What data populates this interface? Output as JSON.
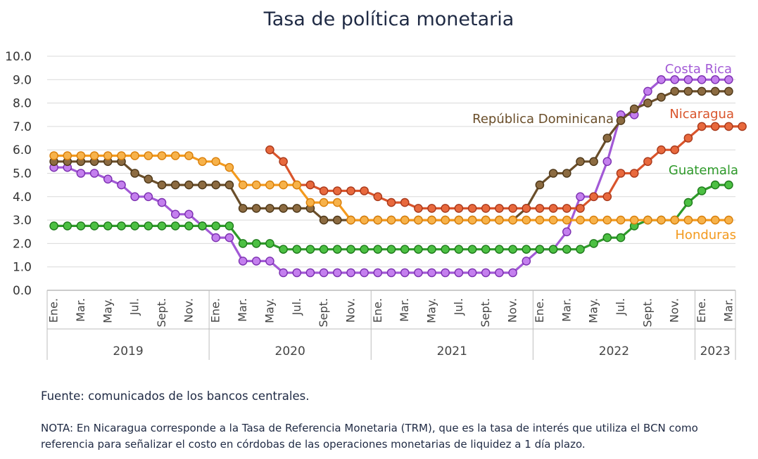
{
  "title": "Tasa de política monetaria",
  "source": "Fuente: comunicados de los bancos centrales.",
  "note": "NOTA: En Nicaragua corresponde a la Tasa de Referencia Monetaria (TRM), que es la tasa de interés que utiliza el BCN como referencia para señalizar el costo en córdobas de las operaciones monetarias de liquidez a 1 día plazo.",
  "chart_data": {
    "type": "line",
    "title": "Tasa de política monetaria",
    "xlabel": "",
    "ylabel": "",
    "ylim": [
      0,
      10
    ],
    "yticks": [
      "0.0",
      "1.0",
      "2.0",
      "3.0",
      "4.0",
      "5.0",
      "6.0",
      "7.0",
      "8.0",
      "9.0",
      "10.0"
    ],
    "grid": true,
    "tick_labels": [
      "Ene.",
      "Mar.",
      "May.",
      "Jul.",
      "Sept.",
      "Nov.",
      "Ene.",
      "Mar.",
      "May.",
      "Jul.",
      "Sept.",
      "Nov.",
      "Ene.",
      "Mar.",
      "May.",
      "Jul.",
      "Sept.",
      "Nov.",
      "Ene.",
      "Mar.",
      "May.",
      "Jul.",
      "Sept.",
      "Nov.",
      "Ene.",
      "Mar."
    ],
    "years": [
      {
        "label": "2019",
        "months": 12
      },
      {
        "label": "2020",
        "months": 12
      },
      {
        "label": "2021",
        "months": 12
      },
      {
        "label": "2022",
        "months": 12
      },
      {
        "label": "2023",
        "months": 3
      }
    ],
    "series": [
      {
        "name": "Costa Rica",
        "color": "#a259d6",
        "line_color": "#a259d6",
        "marker_fill": "#c47fee",
        "marker_stroke": "#7b2fb0",
        "start": 0,
        "values": [
          5.25,
          5.25,
          5.0,
          5.0,
          4.75,
          4.5,
          4.0,
          4.0,
          3.75,
          3.25,
          3.25,
          2.75,
          2.25,
          2.25,
          1.25,
          1.25,
          1.25,
          0.75,
          0.75,
          0.75,
          0.75,
          0.75,
          0.75,
          0.75,
          0.75,
          0.75,
          0.75,
          0.75,
          0.75,
          0.75,
          0.75,
          0.75,
          0.75,
          0.75,
          0.75,
          1.25,
          1.75,
          1.75,
          2.5,
          4.0,
          4.0,
          5.5,
          7.5,
          7.5,
          8.5,
          9.0,
          9.0,
          9.0,
          9.0,
          9.0,
          9.0
        ]
      },
      {
        "name": "República Dominicana",
        "color": "#6a4e2a",
        "line_color": "#6a4e2a",
        "marker_fill": "#8c6b41",
        "marker_stroke": "#4d3718",
        "start": 0,
        "values": [
          5.5,
          5.5,
          5.5,
          5.5,
          5.5,
          5.5,
          5.0,
          4.75,
          4.5,
          4.5,
          4.5,
          4.5,
          4.5,
          4.5,
          3.5,
          3.5,
          3.5,
          3.5,
          3.5,
          3.5,
          3.0,
          3.0,
          3.0,
          3.0,
          3.0,
          3.0,
          3.0,
          3.0,
          3.0,
          3.0,
          3.0,
          3.0,
          3.0,
          3.0,
          3.0,
          3.5,
          4.5,
          5.0,
          5.0,
          5.5,
          5.5,
          6.5,
          7.25,
          7.75,
          8.0,
          8.25,
          8.5,
          8.5,
          8.5,
          8.5,
          8.5
        ]
      },
      {
        "name": "Nicaragua",
        "color": "#d9542b",
        "line_color": "#d9542b",
        "marker_fill": "#e8693d",
        "marker_stroke": "#a8381a",
        "start": 16,
        "values": [
          6.0,
          5.5,
          4.5,
          4.5,
          4.25,
          4.25,
          4.25,
          4.25,
          4.0,
          3.75,
          3.75,
          3.5,
          3.5,
          3.5,
          3.5,
          3.5,
          3.5,
          3.5,
          3.5,
          3.5,
          3.5,
          3.5,
          3.5,
          3.5,
          4.0,
          4.0,
          5.0,
          5.0,
          5.5,
          6.0,
          6.0,
          6.5,
          7.0,
          7.0,
          7.0,
          7.0
        ]
      },
      {
        "name": "Guatemala",
        "color": "#2e9a2a",
        "line_color": "#2e9a2a",
        "marker_fill": "#4cc043",
        "marker_stroke": "#1e7a1b",
        "start": 0,
        "values": [
          2.75,
          2.75,
          2.75,
          2.75,
          2.75,
          2.75,
          2.75,
          2.75,
          2.75,
          2.75,
          2.75,
          2.75,
          2.75,
          2.75,
          2.0,
          2.0,
          2.0,
          1.75,
          1.75,
          1.75,
          1.75,
          1.75,
          1.75,
          1.75,
          1.75,
          1.75,
          1.75,
          1.75,
          1.75,
          1.75,
          1.75,
          1.75,
          1.75,
          1.75,
          1.75,
          1.75,
          1.75,
          1.75,
          1.75,
          1.75,
          2.0,
          2.25,
          2.25,
          2.75,
          3.0,
          3.0,
          3.0,
          3.75,
          4.25,
          4.5,
          4.5
        ]
      },
      {
        "name": "Honduras",
        "color": "#f39a1e",
        "line_color": "#f39a1e",
        "marker_fill": "#f7b24a",
        "marker_stroke": "#d97f0a",
        "start": 0,
        "values": [
          5.75,
          5.75,
          5.75,
          5.75,
          5.75,
          5.75,
          5.75,
          5.75,
          5.75,
          5.75,
          5.75,
          5.5,
          5.5,
          5.25,
          4.5,
          4.5,
          4.5,
          4.5,
          4.5,
          3.75,
          3.75,
          3.75,
          3.0,
          3.0,
          3.0,
          3.0,
          3.0,
          3.0,
          3.0,
          3.0,
          3.0,
          3.0,
          3.0,
          3.0,
          3.0,
          3.0,
          3.0,
          3.0,
          3.0,
          3.0,
          3.0,
          3.0,
          3.0,
          3.0,
          3.0,
          3.0,
          3.0,
          3.0,
          3.0,
          3.0,
          3.0
        ]
      }
    ]
  }
}
